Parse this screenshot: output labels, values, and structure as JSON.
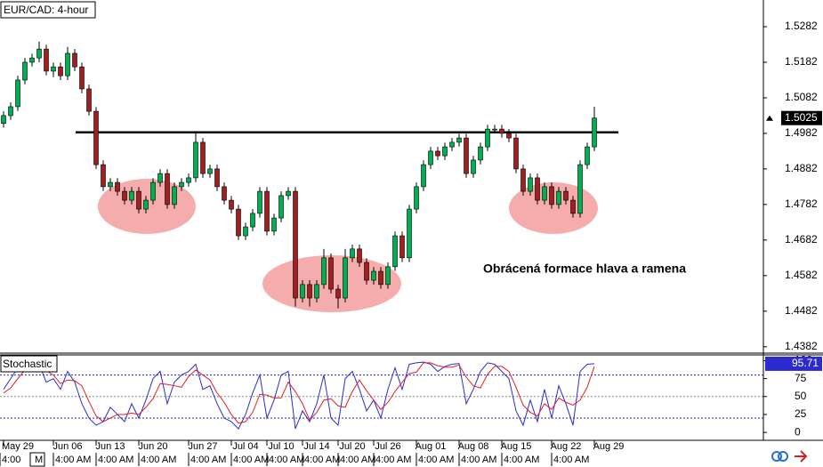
{
  "chart_data": {
    "type": "candlestick",
    "title": "EUR/CAD: 4-hour",
    "categories": [
      null,
      null,
      "May 29",
      null,
      null,
      null,
      null,
      null,
      null,
      "Jun 06",
      null,
      null,
      null,
      null,
      null,
      "Jun 13",
      null,
      null,
      null,
      null,
      null,
      "Jun 20",
      null,
      null,
      null,
      null,
      null,
      null,
      "Jun 27",
      null,
      null,
      null,
      null,
      null,
      "Jul 04",
      null,
      null,
      null,
      null,
      "Jul 10",
      null,
      null,
      null,
      null,
      "Jul 14",
      null,
      null,
      null,
      null,
      "Jul 20",
      null,
      null,
      null,
      null,
      "Jul 26",
      null,
      null,
      null,
      null,
      null,
      "Aug 01",
      null,
      null,
      null,
      null,
      null,
      "Aug 08",
      null,
      null,
      null,
      null,
      null,
      "Aug 15",
      null,
      null,
      null,
      null,
      null,
      null,
      "Aug 22",
      null,
      null,
      null,
      null,
      null,
      "Aug 29"
    ],
    "open": [
      1.501,
      1.5032,
      1.5057,
      1.5132,
      1.5182,
      1.5194,
      1.5219,
      1.5157,
      1.5169,
      1.5144,
      1.5207,
      1.5169,
      1.5107,
      1.5044,
      1.4894,
      1.4832,
      1.4844,
      1.4819,
      1.4794,
      1.4819,
      1.4769,
      1.4794,
      1.4844,
      1.4869,
      1.4782,
      1.4832,
      1.4844,
      1.4857,
      1.4957,
      1.4869,
      1.4882,
      1.4832,
      1.4794,
      1.4769,
      1.4694,
      1.4719,
      1.4757,
      1.4819,
      1.4707,
      1.4744,
      1.4807,
      1.4819,
      1.4519,
      1.4557,
      1.4519,
      1.4557,
      1.4632,
      1.4544,
      1.4519,
      1.4632,
      1.4657,
      1.4619,
      1.4569,
      1.4594,
      1.4557,
      1.4607,
      1.4694,
      1.4632,
      1.4769,
      1.4832,
      1.4894,
      1.4932,
      1.4919,
      1.4944,
      1.4957,
      1.4969,
      1.4869,
      1.4907,
      1.4944,
      1.4994,
      1.4994,
      1.4982,
      1.4969,
      1.4882,
      1.4819,
      1.4857,
      1.4794,
      1.4832,
      1.4782,
      1.4819,
      1.4794,
      1.4757,
      1.4894,
      1.4944,
      null,
      null
    ],
    "high": [
      1.5044,
      1.5069,
      1.5144,
      1.5194,
      1.5206,
      1.524,
      1.5231,
      1.5181,
      1.5181,
      1.5225,
      1.5219,
      1.5181,
      1.5119,
      1.5056,
      1.4906,
      1.4856,
      1.4856,
      1.4831,
      1.4831,
      1.4831,
      1.4806,
      1.4856,
      1.4881,
      1.4881,
      1.4844,
      1.4856,
      1.4869,
      1.4982,
      1.4969,
      1.4894,
      1.4894,
      1.4844,
      1.4806,
      1.4781,
      1.4731,
      1.4769,
      1.4831,
      1.4831,
      1.4756,
      1.4819,
      1.4831,
      1.4831,
      1.4569,
      1.4569,
      1.4569,
      1.4657,
      1.4644,
      1.4556,
      1.4657,
      1.4669,
      1.4669,
      1.4631,
      1.4606,
      1.4606,
      1.4619,
      1.4706,
      1.4706,
      1.4781,
      1.4844,
      1.4906,
      1.4944,
      1.4944,
      1.4956,
      1.4969,
      1.4981,
      1.4981,
      1.4919,
      1.4956,
      1.5006,
      1.5006,
      1.5006,
      1.4994,
      1.4981,
      1.4894,
      1.4869,
      1.4869,
      1.4844,
      1.4844,
      1.4831,
      1.4831,
      1.4806,
      1.4906,
      1.4956,
      1.5057,
      null,
      null
    ],
    "low": [
      1.4998,
      1.502,
      1.5045,
      1.512,
      1.517,
      1.5182,
      1.5145,
      1.514,
      1.5132,
      1.5132,
      1.5157,
      1.5095,
      1.5032,
      1.4882,
      1.482,
      1.482,
      1.4807,
      1.4782,
      1.4782,
      1.4757,
      1.4757,
      1.4782,
      1.4832,
      1.477,
      1.477,
      1.482,
      1.4832,
      1.4845,
      1.4857,
      1.4857,
      1.482,
      1.4782,
      1.4757,
      1.4682,
      1.4682,
      1.4707,
      1.4745,
      1.4695,
      1.4695,
      1.4732,
      1.4795,
      1.4495,
      1.4507,
      1.4495,
      1.4507,
      1.4545,
      1.4532,
      1.449,
      1.4507,
      1.462,
      1.4607,
      1.4557,
      1.4557,
      1.4545,
      1.4545,
      1.4595,
      1.462,
      1.462,
      1.4757,
      1.482,
      1.4882,
      1.4907,
      1.4907,
      1.4932,
      1.4945,
      1.4857,
      1.4857,
      1.4895,
      1.4932,
      1.4982,
      1.497,
      1.4957,
      1.487,
      1.4807,
      1.4807,
      1.4782,
      1.4782,
      1.477,
      1.477,
      1.4782,
      1.4745,
      1.4745,
      1.4882,
      1.4932,
      null,
      null
    ],
    "close": [
      1.5032,
      1.5057,
      1.5132,
      1.5182,
      1.5194,
      1.5219,
      1.5157,
      1.5169,
      1.5144,
      1.5207,
      1.5169,
      1.5107,
      1.5044,
      1.4894,
      1.4832,
      1.4844,
      1.4819,
      1.4794,
      1.4819,
      1.4769,
      1.4794,
      1.4844,
      1.4869,
      1.4782,
      1.4832,
      1.4844,
      1.4857,
      1.4957,
      1.4869,
      1.4882,
      1.4832,
      1.4794,
      1.4769,
      1.4694,
      1.4719,
      1.4757,
      1.4819,
      1.4707,
      1.4744,
      1.4807,
      1.4819,
      1.4519,
      1.4557,
      1.4519,
      1.4557,
      1.4632,
      1.4544,
      1.4519,
      1.4632,
      1.4657,
      1.4619,
      1.4569,
      1.4594,
      1.4557,
      1.4607,
      1.4694,
      1.4632,
      1.4769,
      1.4832,
      1.4894,
      1.4932,
      1.4919,
      1.4944,
      1.4957,
      1.4969,
      1.4869,
      1.4907,
      1.4944,
      1.4994,
      1.4994,
      1.4982,
      1.4969,
      1.4882,
      1.4819,
      1.4857,
      1.4794,
      1.4832,
      1.4782,
      1.4819,
      1.4794,
      1.4757,
      1.4894,
      1.4944,
      1.5025,
      null,
      null
    ],
    "up_color": "#00b050",
    "down_color": "#a02020",
    "ylim": [
      1.4364,
      1.5357
    ],
    "yticks": [
      1.5282,
      1.5182,
      1.5082,
      1.4982,
      1.4882,
      1.4782,
      1.4682,
      1.4582,
      1.4482,
      1.4382
    ],
    "neckline": 1.4985,
    "annotation": "Obrácená formace hlava a ramena",
    "time_labels": [
      "4:00",
      "M",
      "4:00 AM",
      "4:00 AM",
      "4:00 AM",
      "4:00 AM",
      "4:00 AM",
      "4:00 AM",
      "4:00 AM",
      "4:00 AM",
      "4:00 AM",
      "4:00 AM",
      "4:00 AM",
      "4:00 AM",
      "4:00 AM"
    ],
    "stochastic": {
      "title": "Stochastic",
      "ylim": [
        -11,
        108
      ],
      "yticks": [
        100,
        75,
        50,
        25,
        0
      ],
      "levels": [
        80,
        50,
        20
      ],
      "series": [
        {
          "color": "#2b2bd0",
          "values": [
            60,
            75,
            90,
            95,
            92,
            95,
            70,
            75,
            60,
            85,
            70,
            40,
            20,
            10,
            15,
            35,
            25,
            15,
            40,
            20,
            45,
            75,
            85,
            40,
            70,
            80,
            85,
            95,
            60,
            65,
            40,
            20,
            15,
            5,
            25,
            55,
            80,
            20,
            45,
            80,
            85,
            5,
            30,
            15,
            40,
            80,
            20,
            10,
            75,
            85,
            60,
            30,
            45,
            20,
            60,
            90,
            60,
            95,
            97,
            98,
            95,
            85,
            92,
            95,
            96,
            40,
            60,
            85,
            97,
            95,
            85,
            75,
            30,
            10,
            45,
            15,
            60,
            20,
            65,
            40,
            10,
            85,
            95,
            95.71,
            null,
            null
          ]
        },
        {
          "color": "#e02020",
          "values": [
            55,
            62,
            75,
            87,
            92,
            94,
            86,
            80,
            68,
            73,
            72,
            65,
            43,
            23,
            15,
            20,
            25,
            25,
            27,
            25,
            35,
            47,
            68,
            67,
            65,
            63,
            78,
            87,
            80,
            73,
            55,
            42,
            25,
            13,
            15,
            28,
            53,
            52,
            48,
            48,
            70,
            57,
            40,
            17,
            28,
            45,
            47,
            37,
            35,
            57,
            73,
            58,
            45,
            32,
            42,
            57,
            70,
            82,
            84,
            97,
            97,
            93,
            91,
            91,
            94,
            77,
            65,
            62,
            81,
            92,
            92,
            85,
            63,
            38,
            28,
            23,
            40,
            32,
            48,
            42,
            38,
            45,
            63,
            92,
            null,
            null
          ]
        }
      ]
    }
  }
}
